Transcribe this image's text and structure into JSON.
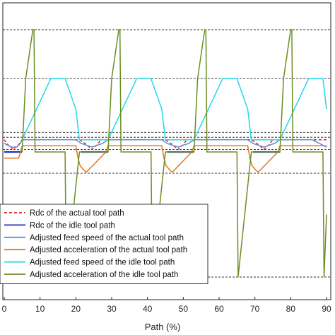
{
  "chart_data": {
    "type": "line",
    "title": "",
    "xlabel": "Path (%)",
    "ylabel": "",
    "xlim": [
      0,
      90
    ],
    "x_tick_labels": [
      "0",
      "10",
      "20",
      "30",
      "40",
      "50",
      "60",
      "70",
      "80",
      "90"
    ],
    "grid": false,
    "legend_position": "bottom-left",
    "reference_levels": [
      {
        "value": 1.0
      },
      {
        "value": 0.6
      },
      {
        "value": 0.16
      },
      {
        "value": 0.12
      },
      {
        "value": 0.02
      },
      {
        "value": -0.17
      },
      {
        "value": -1.0
      }
    ],
    "series": [
      {
        "name": "Rdc of the actual tool path",
        "color": "#e02020",
        "style": "dashed",
        "x": [
          0,
          1,
          2.5,
          4,
          5,
          14,
          21,
          23,
          24.5,
          26,
          27,
          28,
          29,
          38,
          45,
          47,
          48.5,
          50,
          51,
          52,
          53,
          62,
          69,
          71,
          72.5,
          74,
          75,
          76,
          77,
          86,
          90
        ],
        "y": [
          0.1,
          0.06,
          0.02,
          0.06,
          0.1,
          0.1,
          0.1,
          0.06,
          0.02,
          0.06,
          0.1,
          0.1,
          0.1,
          0.1,
          0.1,
          0.06,
          0.02,
          0.06,
          0.1,
          0.1,
          0.1,
          0.1,
          0.1,
          0.06,
          0.02,
          0.06,
          0.1,
          0.1,
          0.1,
          0.1,
          0.1
        ]
      },
      {
        "name": "Rdc of the idle tool path",
        "color": "#1f2fbf",
        "style": "solid",
        "x": [
          0,
          5,
          5.5,
          14,
          21,
          21.5,
          29,
          29.5,
          38,
          45,
          45.5,
          53,
          53.5,
          62,
          69,
          69.5,
          77,
          77.5,
          86,
          90
        ],
        "y": [
          0,
          0,
          null,
          null,
          null,
          0,
          0,
          null,
          null,
          null,
          0,
          0,
          null,
          null,
          null,
          0,
          0,
          null,
          null,
          null
        ]
      },
      {
        "name": "Adjusted feed speed of the actual tool path",
        "color": "#5b8fd6",
        "style": "solid",
        "x": [
          0,
          2,
          3.5,
          4.5,
          5,
          14,
          20,
          21.5,
          24.5,
          27.5,
          29,
          38,
          44,
          45.5,
          48.5,
          51.5,
          53,
          62,
          68,
          69.5,
          72.5,
          75.5,
          77,
          86,
          88,
          90
        ],
        "y": [
          0.07,
          0.04,
          0.04,
          0.07,
          0.1,
          0.1,
          0.1,
          0.07,
          0.04,
          0.07,
          0.1,
          0.1,
          0.1,
          0.07,
          0.04,
          0.07,
          0.1,
          0.1,
          0.1,
          0.07,
          0.04,
          0.07,
          0.1,
          0.1,
          0.07,
          0.04
        ]
      },
      {
        "name": "Adjusted acceleration of the actual tool path",
        "color": "#e8761f",
        "style": "solid",
        "x": [
          0,
          4,
          4.6,
          5,
          20,
          20.6,
          21.2,
          21.8,
          22.4,
          23,
          28.4,
          29,
          44,
          44.6,
          45.2,
          45.8,
          46.4,
          47,
          52.4,
          53,
          68,
          68.6,
          69.2,
          69.8,
          70.4,
          71,
          76.4,
          77,
          90
        ],
        "y": [
          -0.05,
          -0.05,
          0.0,
          0.05,
          0.05,
          -0.05,
          -0.11,
          -0.13,
          -0.15,
          -0.16,
          0.0,
          0.05,
          0.05,
          -0.05,
          -0.11,
          -0.13,
          -0.15,
          -0.16,
          0.0,
          0.05,
          0.05,
          -0.05,
          -0.11,
          -0.13,
          -0.15,
          -0.16,
          0.0,
          0.05,
          0.05
        ]
      },
      {
        "name": "Adjusted feed speed of the idle tool path",
        "color": "#22d8e8",
        "style": "solid",
        "x": [
          5,
          9,
          13,
          17,
          20,
          21,
          29,
          33,
          37,
          41,
          44,
          45,
          53,
          57,
          61,
          65,
          68,
          69,
          77,
          81,
          85,
          89,
          90
        ],
        "y": [
          0.1,
          0.35,
          0.6,
          0.6,
          0.35,
          0.1,
          0.1,
          0.35,
          0.6,
          0.6,
          0.35,
          0.1,
          0.1,
          0.35,
          0.6,
          0.6,
          0.35,
          0.1,
          0.1,
          0.35,
          0.6,
          0.6,
          0.35
        ]
      },
      {
        "name": "Adjusted acceleration of the idle tool path",
        "color": "#6b8e23",
        "style": "solid",
        "x": [
          5,
          6,
          8,
          8.3,
          8.6,
          17,
          17.3,
          21,
          21.3,
          29,
          30,
          32,
          32.3,
          32.6,
          41,
          41.3,
          45,
          45.3,
          53,
          54,
          56,
          56.3,
          56.6,
          65,
          65.3,
          69,
          69.3,
          77,
          78,
          80,
          80.3,
          80.6,
          89,
          89.3,
          90
        ],
        "y": [
          0.0,
          0.6,
          1.0,
          1.0,
          0.0,
          0.0,
          -1.0,
          0.0,
          0.0,
          0.0,
          0.6,
          1.0,
          1.0,
          0.0,
          0.0,
          -1.0,
          0.0,
          0.0,
          0.0,
          0.6,
          1.0,
          1.0,
          0.0,
          0.0,
          -1.0,
          0.0,
          0.0,
          0.0,
          0.6,
          1.0,
          1.0,
          0.0,
          0.0,
          -1.0,
          -0.5
        ]
      }
    ]
  }
}
